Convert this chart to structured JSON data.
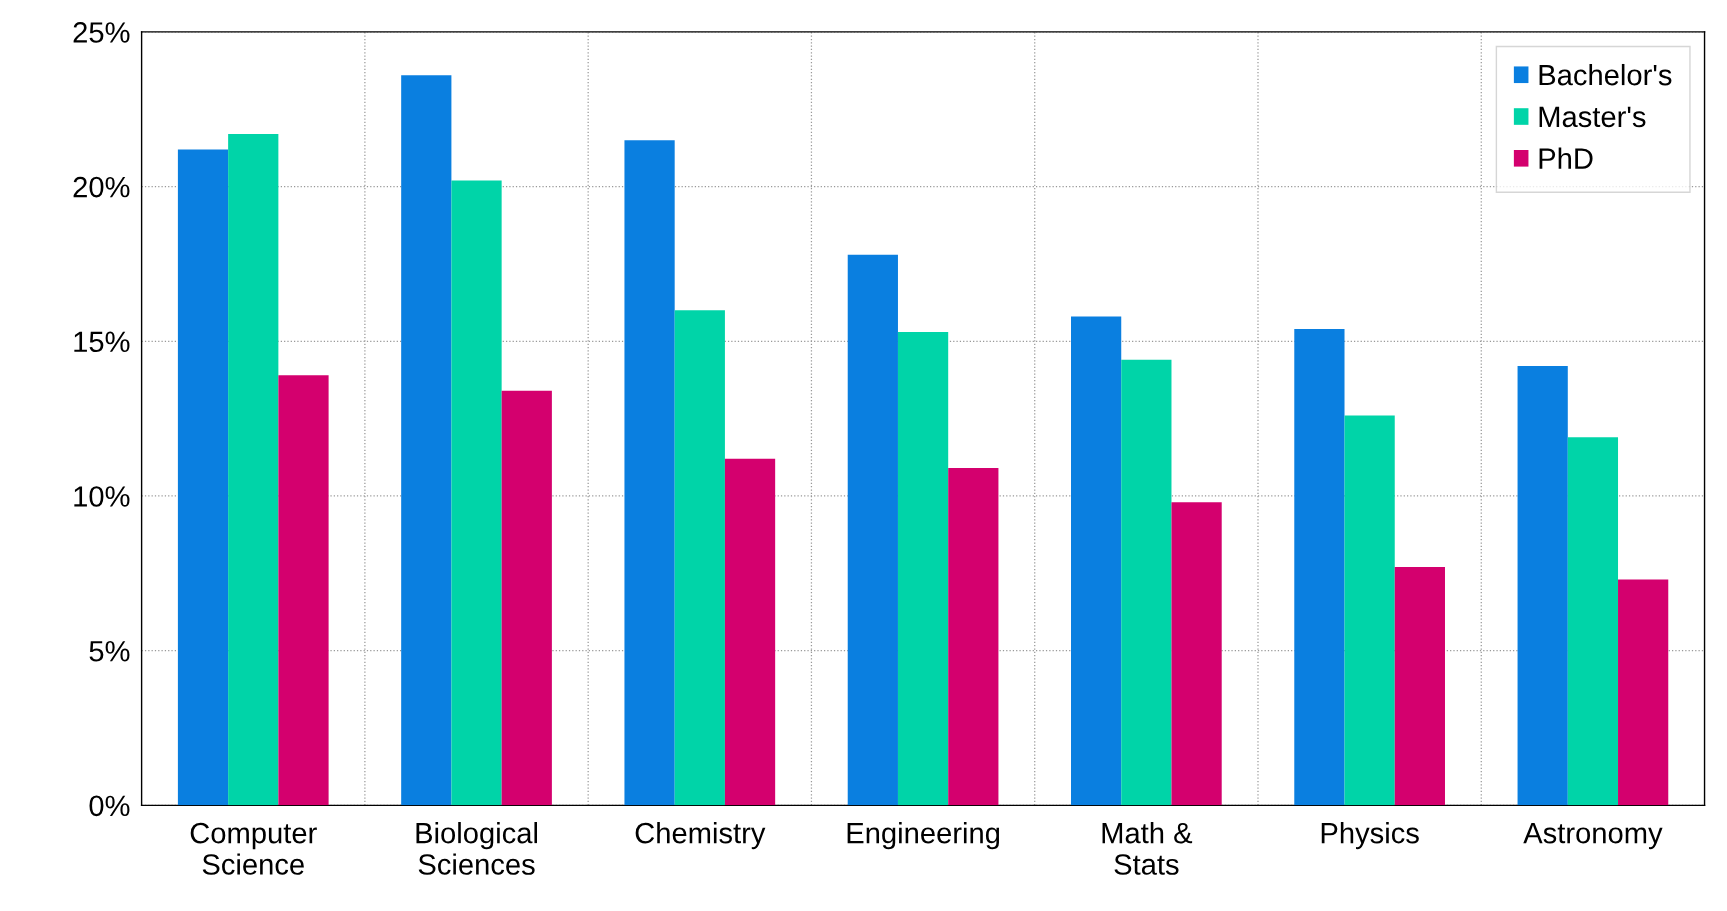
{
  "chart_data": {
    "type": "bar",
    "categories": [
      "Computer\nScience",
      "Biological\nSciences",
      "Chemistry",
      "Engineering",
      "Math &\nStats",
      "Physics",
      "Astronomy"
    ],
    "series": [
      {
        "name": "Bachelor's",
        "color": "#0a7fe0",
        "values": [
          21.2,
          23.6,
          21.5,
          17.8,
          15.8,
          15.4,
          14.2
        ]
      },
      {
        "name": "Master's",
        "color": "#00d4a8",
        "values": [
          21.7,
          20.2,
          16.0,
          15.3,
          14.4,
          12.6,
          11.9
        ]
      },
      {
        "name": "PhD",
        "color": "#d4006e",
        "values": [
          13.9,
          13.4,
          11.2,
          10.9,
          9.8,
          7.7,
          7.3
        ]
      }
    ],
    "ylim": [
      0,
      25
    ],
    "yticks": [
      {
        "value": 0,
        "label": "0%"
      },
      {
        "value": 5,
        "label": "5%"
      },
      {
        "value": 10,
        "label": "10%"
      },
      {
        "value": 15,
        "label": "15%"
      },
      {
        "value": 20,
        "label": "20%"
      },
      {
        "value": 25,
        "label": "25%"
      }
    ],
    "grid": true,
    "legend": "top right"
  }
}
